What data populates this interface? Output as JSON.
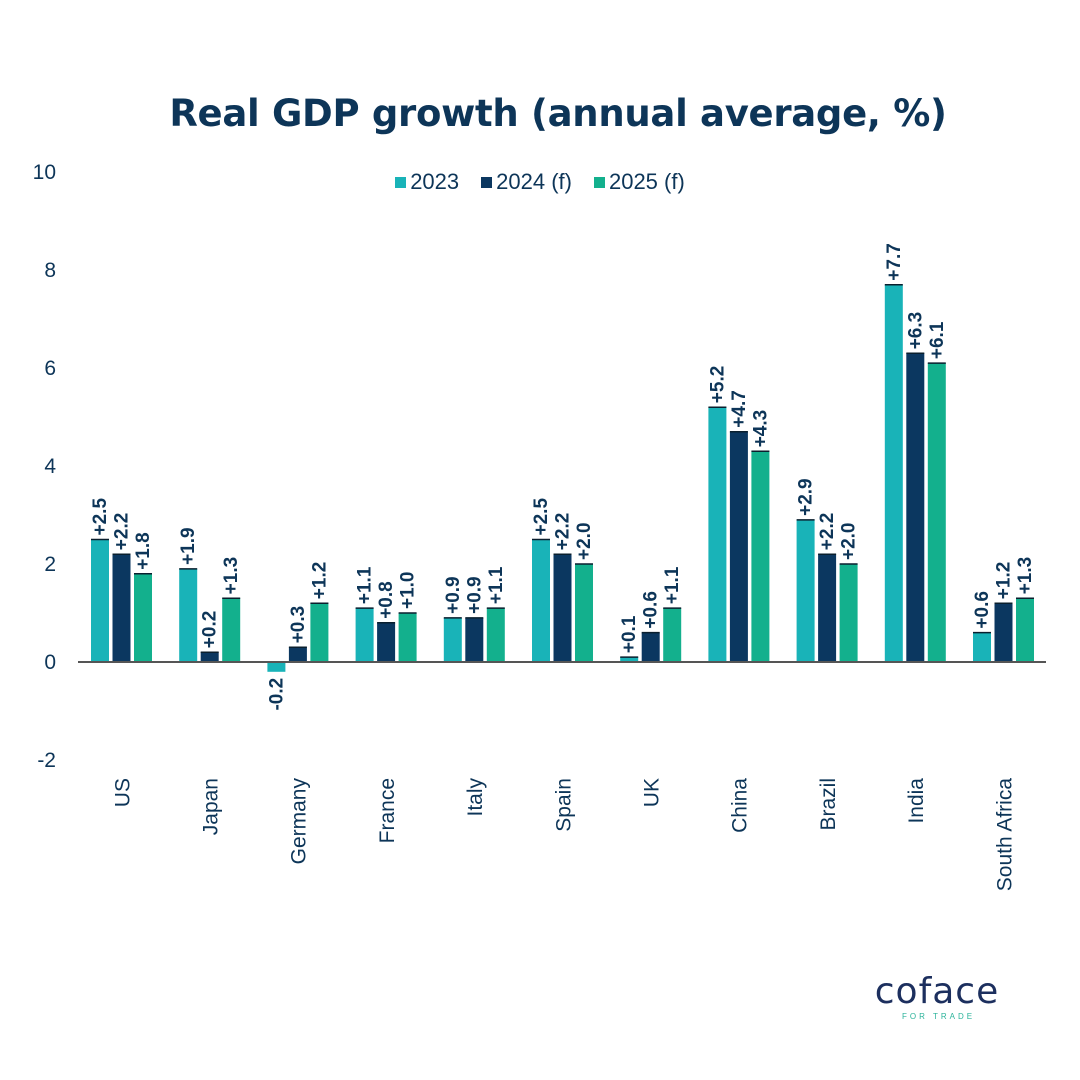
{
  "chart_data": {
    "type": "bar",
    "title": "Real GDP growth (annual average, %)",
    "xlabel": "",
    "ylabel": "",
    "ylim": [
      -2,
      10
    ],
    "yticks": [
      "-2",
      "0",
      "2",
      "4",
      "6",
      "8",
      "10"
    ],
    "ytick_values": [
      -2,
      0,
      2,
      4,
      6,
      8,
      10
    ],
    "grid": false,
    "legend_position": "top-center",
    "categories": [
      "US",
      "Japan",
      "Germany",
      "France",
      "Italy",
      "Spain",
      "UK",
      "China",
      "Brazil",
      "India",
      "South Africa"
    ],
    "series": [
      {
        "name": "2023",
        "color": "#19b3b8",
        "values": [
          2.5,
          1.9,
          -0.2,
          1.1,
          0.9,
          2.5,
          0.1,
          5.2,
          2.9,
          7.7,
          0.6
        ],
        "labels": [
          "+2.5",
          "+1.9",
          "-0.2",
          "+1.1",
          "+0.9",
          "+2.5",
          "+0.1",
          "+5.2",
          "+2.9",
          "+7.7",
          "+0.6"
        ]
      },
      {
        "name": "2024 (f)",
        "color": "#0b3760",
        "values": [
          2.2,
          0.2,
          0.3,
          0.8,
          0.9,
          2.2,
          0.6,
          4.7,
          2.2,
          6.3,
          1.2
        ],
        "labels": [
          "+2.2",
          "+0.2",
          "+0.3",
          "+0.8",
          "+0.9",
          "+2.2",
          "+0.6",
          "+4.7",
          "+2.2",
          "+6.3",
          "+1.2"
        ]
      },
      {
        "name": "2025 (f)",
        "color": "#13b08d",
        "values": [
          1.8,
          1.3,
          1.2,
          1.0,
          1.1,
          2.0,
          1.1,
          4.3,
          2.0,
          6.1,
          1.3
        ],
        "labels": [
          "+1.8",
          "+1.3",
          "+1.2",
          "+1.0",
          "+1.1",
          "+2.0",
          "+1.1",
          "+4.3",
          "+2.0",
          "+6.1",
          "+1.3"
        ]
      }
    ]
  },
  "brand": {
    "logo_text": "coface",
    "tagline": "FOR TRADE"
  },
  "colors": {
    "text": "#0d3558",
    "axis": "#555555"
  }
}
